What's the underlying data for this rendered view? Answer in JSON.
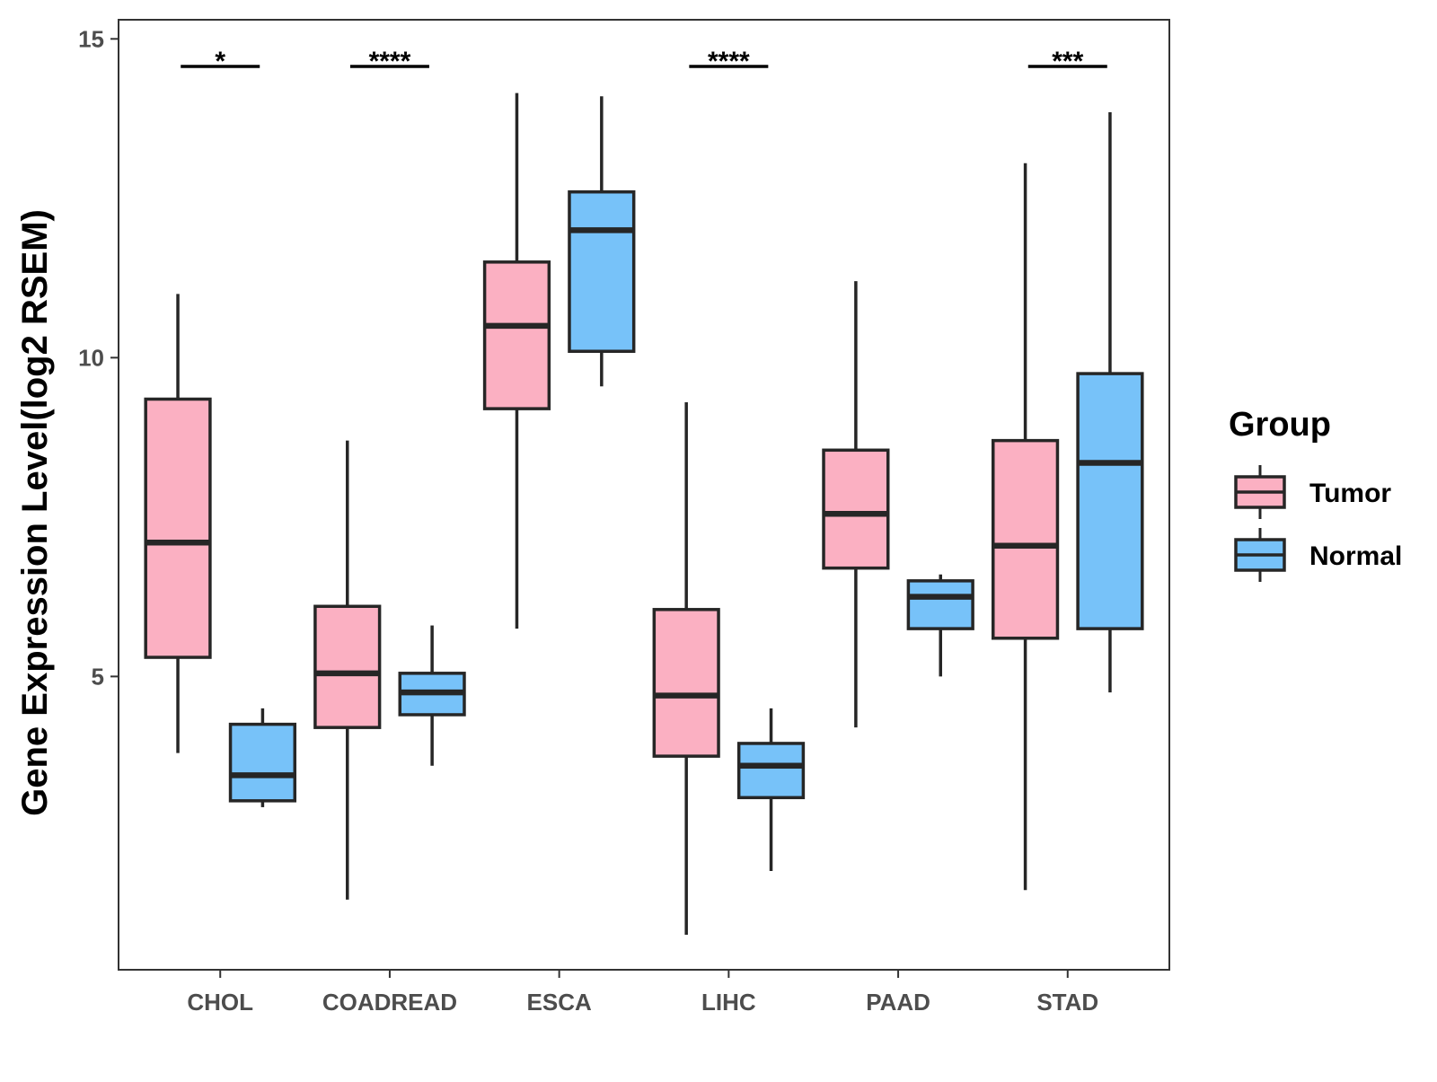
{
  "chart_data": {
    "type": "boxplot",
    "title": "",
    "xlabel": "",
    "ylabel": "Gene Expression Level(log2 RSEM)",
    "ylim": [
      0.4,
      15.3
    ],
    "y_ticks": [
      5,
      10,
      15
    ],
    "categories": [
      "CHOL",
      "COADREAD",
      "ESCA",
      "LIHC",
      "PAAD",
      "STAD"
    ],
    "legend": {
      "title": "Group",
      "placement": "right",
      "entries": [
        {
          "name": "Tumor",
          "color": "#FBB0C2"
        },
        {
          "name": "Normal",
          "color": "#77C2F9"
        }
      ]
    },
    "series": [
      {
        "name": "Tumor",
        "color": "#FBB0C2",
        "boxes": [
          {
            "category": "CHOL",
            "min": 3.8,
            "q1": 5.3,
            "median": 7.1,
            "q3": 9.35,
            "max": 11.0
          },
          {
            "category": "COADREAD",
            "min": 1.5,
            "q1": 4.2,
            "median": 5.05,
            "q3": 6.1,
            "max": 8.7
          },
          {
            "category": "ESCA",
            "min": 5.75,
            "q1": 9.2,
            "median": 10.5,
            "q3": 11.5,
            "max": 14.15
          },
          {
            "category": "LIHC",
            "min": 0.95,
            "q1": 3.75,
            "median": 4.7,
            "q3": 6.05,
            "max": 9.3
          },
          {
            "category": "PAAD",
            "min": 4.2,
            "q1": 6.7,
            "median": 7.55,
            "q3": 8.55,
            "max": 11.2
          },
          {
            "category": "STAD",
            "min": 1.65,
            "q1": 5.6,
            "median": 7.05,
            "q3": 8.7,
            "max": 13.05
          }
        ]
      },
      {
        "name": "Normal",
        "color": "#77C2F9",
        "boxes": [
          {
            "category": "CHOL",
            "min": 2.95,
            "q1": 3.05,
            "median": 3.45,
            "q3": 4.25,
            "max": 4.5
          },
          {
            "category": "COADREAD",
            "min": 3.6,
            "q1": 4.4,
            "median": 4.75,
            "q3": 5.05,
            "max": 5.8
          },
          {
            "category": "ESCA",
            "min": 9.55,
            "q1": 10.1,
            "median": 12.0,
            "q3": 12.6,
            "max": 14.1
          },
          {
            "category": "LIHC",
            "min": 1.95,
            "q1": 3.1,
            "median": 3.6,
            "q3": 3.95,
            "max": 4.5
          },
          {
            "category": "PAAD",
            "min": 5.0,
            "q1": 5.75,
            "median": 6.25,
            "q3": 6.5,
            "max": 6.6
          },
          {
            "category": "STAD",
            "min": 4.75,
            "q1": 5.75,
            "median": 8.35,
            "q3": 9.75,
            "max": 13.85
          }
        ]
      }
    ],
    "significance": [
      {
        "category": "CHOL",
        "label": "*"
      },
      {
        "category": "COADREAD",
        "label": "****"
      },
      {
        "category": "LIHC",
        "label": "****"
      },
      {
        "category": "STAD",
        "label": "***"
      }
    ]
  }
}
